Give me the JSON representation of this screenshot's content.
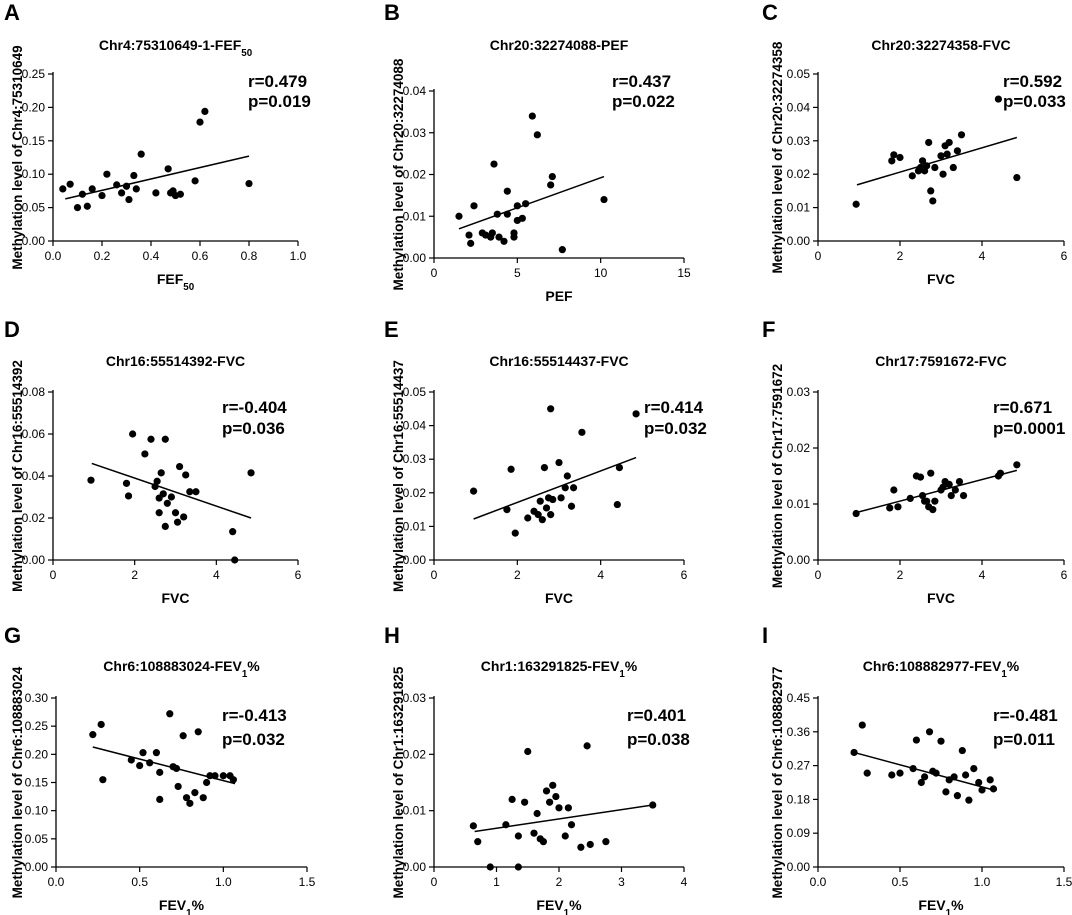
{
  "chart_data": [
    {
      "panel": "A",
      "type": "scatter",
      "title": "Chr4:75310649-1-FEF",
      "title_sub": "50",
      "xlabel": "FEF",
      "xlabel_sub": "50",
      "ylabel": "Methylation level of Chr4:75310649",
      "xlim": [
        0,
        1.0
      ],
      "ylim": [
        0,
        0.25
      ],
      "xticks": [
        "0.0",
        "0.2",
        "0.4",
        "0.6",
        "0.8",
        "1.0"
      ],
      "yticks": [
        "0.00",
        "0.05",
        "0.10",
        "0.15",
        "0.20",
        "0.25"
      ],
      "r": "r=0.479",
      "p": "p=0.019",
      "fit": [
        [
          0.05,
          0.063
        ],
        [
          0.8,
          0.127
        ]
      ],
      "points": [
        [
          0.04,
          0.078
        ],
        [
          0.07,
          0.085
        ],
        [
          0.1,
          0.05
        ],
        [
          0.12,
          0.07
        ],
        [
          0.14,
          0.052
        ],
        [
          0.16,
          0.078
        ],
        [
          0.2,
          0.068
        ],
        [
          0.22,
          0.1
        ],
        [
          0.26,
          0.084
        ],
        [
          0.28,
          0.072
        ],
        [
          0.3,
          0.082
        ],
        [
          0.31,
          0.062
        ],
        [
          0.33,
          0.098
        ],
        [
          0.34,
          0.078
        ],
        [
          0.36,
          0.13
        ],
        [
          0.42,
          0.072
        ],
        [
          0.47,
          0.108
        ],
        [
          0.48,
          0.072
        ],
        [
          0.49,
          0.075
        ],
        [
          0.5,
          0.068
        ],
        [
          0.52,
          0.07
        ],
        [
          0.58,
          0.09
        ],
        [
          0.6,
          0.178
        ],
        [
          0.62,
          0.194
        ],
        [
          0.8,
          0.086
        ]
      ]
    },
    {
      "panel": "B",
      "type": "scatter",
      "title": "Chr20:32274088-PEF",
      "title_sub": "",
      "xlabel": "PEF",
      "xlabel_sub": "",
      "ylabel": "Methylation level of Chr20:32274088",
      "xlim": [
        0,
        15
      ],
      "ylim": [
        0,
        0.04
      ],
      "xticks": [
        "0",
        "5",
        "10",
        "15"
      ],
      "yticks": [
        "0.00",
        "0.01",
        "0.02",
        "0.03",
        "0.04"
      ],
      "r": "r=0.437",
      "p": "p=0.022",
      "fit": [
        [
          1.5,
          0.007
        ],
        [
          10.2,
          0.0195
        ]
      ],
      "points": [
        [
          1.5,
          0.01
        ],
        [
          2.1,
          0.0055
        ],
        [
          2.2,
          0.0035
        ],
        [
          2.4,
          0.0125
        ],
        [
          2.9,
          0.006
        ],
        [
          3.1,
          0.0055
        ],
        [
          3.4,
          0.005
        ],
        [
          3.5,
          0.006
        ],
        [
          3.6,
          0.0225
        ],
        [
          3.9,
          0.005
        ],
        [
          3.8,
          0.0105
        ],
        [
          4.2,
          0.004
        ],
        [
          4.4,
          0.016
        ],
        [
          4.4,
          0.0105
        ],
        [
          4.8,
          0.006
        ],
        [
          4.8,
          0.005
        ],
        [
          5.0,
          0.0125
        ],
        [
          5.0,
          0.009
        ],
        [
          5.3,
          0.0095
        ],
        [
          5.5,
          0.013
        ],
        [
          5.9,
          0.034
        ],
        [
          6.2,
          0.0295
        ],
        [
          7.0,
          0.0175
        ],
        [
          7.1,
          0.0195
        ],
        [
          7.7,
          0.002
        ],
        [
          10.2,
          0.014
        ]
      ]
    },
    {
      "panel": "C",
      "type": "scatter",
      "title": "Chr20:32274358-FVC",
      "title_sub": "",
      "xlabel": "FVC",
      "xlabel_sub": "",
      "ylabel": "Methylation level of Chr20:32274358",
      "xlim": [
        0,
        6
      ],
      "ylim": [
        0,
        0.05
      ],
      "xticks": [
        "0",
        "2",
        "4",
        "6"
      ],
      "yticks": [
        "0.00",
        "0.01",
        "0.02",
        "0.03",
        "0.04",
        "0.05"
      ],
      "r": "r=0.592",
      "p": "p=0.033",
      "fit": [
        [
          0.95,
          0.0168
        ],
        [
          4.85,
          0.031
        ]
      ],
      "points": [
        [
          0.93,
          0.011
        ],
        [
          1.8,
          0.024
        ],
        [
          1.85,
          0.0258
        ],
        [
          2.0,
          0.025
        ],
        [
          2.3,
          0.0195
        ],
        [
          2.45,
          0.021
        ],
        [
          2.5,
          0.022
        ],
        [
          2.55,
          0.024
        ],
        [
          2.6,
          0.021
        ],
        [
          2.65,
          0.0225
        ],
        [
          2.7,
          0.0295
        ],
        [
          2.75,
          0.015
        ],
        [
          2.8,
          0.012
        ],
        [
          2.85,
          0.022
        ],
        [
          3.0,
          0.0255
        ],
        [
          3.05,
          0.02
        ],
        [
          3.1,
          0.0285
        ],
        [
          3.15,
          0.026
        ],
        [
          3.2,
          0.0295
        ],
        [
          3.3,
          0.022
        ],
        [
          3.4,
          0.027
        ],
        [
          3.5,
          0.0318
        ],
        [
          4.4,
          0.0425
        ],
        [
          4.85,
          0.019
        ]
      ]
    },
    {
      "panel": "D",
      "type": "scatter",
      "title": "Chr16:55514392-FVC",
      "title_sub": "",
      "xlabel": "FVC",
      "xlabel_sub": "",
      "ylabel": "Methylation level of Chr16:55514392",
      "xlim": [
        0,
        6
      ],
      "ylim": [
        0,
        0.08
      ],
      "xticks": [
        "0",
        "2",
        "4",
        "6"
      ],
      "yticks": [
        "0.00",
        "0.02",
        "0.04",
        "0.06",
        "0.08"
      ],
      "r": "r=-0.404",
      "p": "p=0.036",
      "fit": [
        [
          0.95,
          0.046
        ],
        [
          4.85,
          0.02
        ]
      ],
      "points": [
        [
          0.93,
          0.038
        ],
        [
          1.8,
          0.0365
        ],
        [
          1.85,
          0.0305
        ],
        [
          1.95,
          0.06
        ],
        [
          2.25,
          0.0505
        ],
        [
          2.4,
          0.0575
        ],
        [
          2.5,
          0.035
        ],
        [
          2.55,
          0.0375
        ],
        [
          2.6,
          0.0295
        ],
        [
          2.6,
          0.0225
        ],
        [
          2.65,
          0.0415
        ],
        [
          2.7,
          0.0315
        ],
        [
          2.75,
          0.0575
        ],
        [
          2.75,
          0.016
        ],
        [
          2.8,
          0.027
        ],
        [
          2.9,
          0.03
        ],
        [
          3.0,
          0.0225
        ],
        [
          3.05,
          0.018
        ],
        [
          3.1,
          0.0445
        ],
        [
          3.2,
          0.0205
        ],
        [
          3.25,
          0.0405
        ],
        [
          3.35,
          0.0325
        ],
        [
          3.5,
          0.0325
        ],
        [
          4.4,
          0.0135
        ],
        [
          4.45,
          0.0
        ],
        [
          4.85,
          0.0415
        ]
      ]
    },
    {
      "panel": "E",
      "type": "scatter",
      "title": "Chr16:55514437-FVC",
      "title_sub": "",
      "xlabel": "FVC",
      "xlabel_sub": "",
      "ylabel": "Methylation level of Chr16:55514437",
      "xlim": [
        0,
        6
      ],
      "ylim": [
        0,
        0.05
      ],
      "xticks": [
        "0",
        "2",
        "4",
        "6"
      ],
      "yticks": [
        "0.00",
        "0.01",
        "0.02",
        "0.03",
        "0.04",
        "0.05"
      ],
      "r": "r=0.414",
      "p": "p=0.032",
      "fit": [
        [
          0.95,
          0.0122
        ],
        [
          4.85,
          0.0305
        ]
      ],
      "points": [
        [
          0.95,
          0.0205
        ],
        [
          1.75,
          0.015
        ],
        [
          1.85,
          0.027
        ],
        [
          1.95,
          0.008
        ],
        [
          2.25,
          0.0125
        ],
        [
          2.4,
          0.0145
        ],
        [
          2.5,
          0.0135
        ],
        [
          2.55,
          0.0175
        ],
        [
          2.6,
          0.012
        ],
        [
          2.65,
          0.0275
        ],
        [
          2.7,
          0.0155
        ],
        [
          2.75,
          0.0185
        ],
        [
          2.8,
          0.045
        ],
        [
          2.8,
          0.0135
        ],
        [
          2.85,
          0.018
        ],
        [
          3.0,
          0.029
        ],
        [
          3.05,
          0.0185
        ],
        [
          3.15,
          0.0215
        ],
        [
          3.2,
          0.025
        ],
        [
          3.3,
          0.016
        ],
        [
          3.35,
          0.0215
        ],
        [
          3.55,
          0.038
        ],
        [
          4.4,
          0.0165
        ],
        [
          4.45,
          0.0275
        ],
        [
          4.85,
          0.0435
        ]
      ]
    },
    {
      "panel": "F",
      "type": "scatter",
      "title": "Chr17:7591672-FVC",
      "title_sub": "",
      "xlabel": "FVC",
      "xlabel_sub": "",
      "ylabel": "Methylation level of Chr17:7591672",
      "xlim": [
        0,
        6
      ],
      "ylim": [
        0,
        0.03
      ],
      "xticks": [
        "0",
        "2",
        "4",
        "6"
      ],
      "yticks": [
        "0.00",
        "0.01",
        "0.02",
        "0.03"
      ],
      "r": "r=0.671",
      "p": "p=0.0001",
      "fit": [
        [
          0.95,
          0.0085
        ],
        [
          4.85,
          0.016
        ]
      ],
      "points": [
        [
          0.93,
          0.0083
        ],
        [
          1.75,
          0.0093
        ],
        [
          1.85,
          0.0125
        ],
        [
          1.95,
          0.0095
        ],
        [
          2.25,
          0.011
        ],
        [
          2.4,
          0.015
        ],
        [
          2.5,
          0.0148
        ],
        [
          2.55,
          0.0115
        ],
        [
          2.6,
          0.0105
        ],
        [
          2.65,
          0.0105
        ],
        [
          2.7,
          0.0095
        ],
        [
          2.75,
          0.0155
        ],
        [
          2.8,
          0.009
        ],
        [
          2.85,
          0.0105
        ],
        [
          3.0,
          0.0125
        ],
        [
          3.05,
          0.013
        ],
        [
          3.1,
          0.014
        ],
        [
          3.2,
          0.0135
        ],
        [
          3.25,
          0.0115
        ],
        [
          3.35,
          0.0125
        ],
        [
          3.45,
          0.014
        ],
        [
          3.55,
          0.0115
        ],
        [
          4.4,
          0.015
        ],
        [
          4.45,
          0.0155
        ],
        [
          4.85,
          0.017
        ]
      ]
    },
    {
      "panel": "G",
      "type": "scatter",
      "title": "Chr6:108883024-FEV",
      "title_sub": "1",
      "title_suffix": "%",
      "xlabel": "FEV",
      "xlabel_sub": "1",
      "xlabel_suffix": "%",
      "ylabel": "Methylation level of Chr6:108883024",
      "xlim": [
        0,
        1.5
      ],
      "ylim": [
        0,
        0.3
      ],
      "xticks": [
        "0.0",
        "0.5",
        "1.0",
        "1.5"
      ],
      "yticks": [
        "0.00",
        "0.05",
        "0.10",
        "0.15",
        "0.20",
        "0.25",
        "0.30"
      ],
      "r": "r=-0.413",
      "p": "p=0.032",
      "fit": [
        [
          0.22,
          0.213
        ],
        [
          1.07,
          0.148
        ]
      ],
      "points": [
        [
          0.22,
          0.235
        ],
        [
          0.27,
          0.253
        ],
        [
          0.28,
          0.155
        ],
        [
          0.45,
          0.19
        ],
        [
          0.5,
          0.18
        ],
        [
          0.52,
          0.203
        ],
        [
          0.56,
          0.185
        ],
        [
          0.6,
          0.203
        ],
        [
          0.62,
          0.168
        ],
        [
          0.62,
          0.12
        ],
        [
          0.68,
          0.272
        ],
        [
          0.7,
          0.178
        ],
        [
          0.72,
          0.175
        ],
        [
          0.73,
          0.143
        ],
        [
          0.76,
          0.233
        ],
        [
          0.78,
          0.123
        ],
        [
          0.8,
          0.113
        ],
        [
          0.83,
          0.132
        ],
        [
          0.85,
          0.24
        ],
        [
          0.88,
          0.123
        ],
        [
          0.9,
          0.15
        ],
        [
          0.92,
          0.162
        ],
        [
          0.95,
          0.162
        ],
        [
          1.0,
          0.162
        ],
        [
          1.04,
          0.162
        ],
        [
          1.06,
          0.155
        ]
      ]
    },
    {
      "panel": "H",
      "type": "scatter",
      "title": "Chr1:163291825-FEV",
      "title_sub": "1",
      "title_suffix": "%",
      "xlabel": "FEV",
      "xlabel_sub": "1",
      "xlabel_suffix": "%",
      "ylabel": "Methylation level of Chr1:163291825",
      "xlim": [
        0,
        4
      ],
      "ylim": [
        0,
        0.03
      ],
      "xticks": [
        "0",
        "1",
        "2",
        "3",
        "4"
      ],
      "yticks": [
        "0.00",
        "0.01",
        "0.02",
        "0.03"
      ],
      "r": "r=0.401",
      "p": "p=0.038",
      "fit": [
        [
          0.65,
          0.0063
        ],
        [
          3.5,
          0.011
        ]
      ],
      "points": [
        [
          0.63,
          0.0073
        ],
        [
          0.7,
          0.0045
        ],
        [
          0.9,
          0.0
        ],
        [
          1.15,
          0.0075
        ],
        [
          1.25,
          0.012
        ],
        [
          1.35,
          0.0055
        ],
        [
          1.35,
          0.0
        ],
        [
          1.45,
          0.0115
        ],
        [
          1.5,
          0.0205
        ],
        [
          1.6,
          0.006
        ],
        [
          1.65,
          0.0095
        ],
        [
          1.7,
          0.005
        ],
        [
          1.75,
          0.0045
        ],
        [
          1.8,
          0.0135
        ],
        [
          1.85,
          0.0115
        ],
        [
          1.9,
          0.0145
        ],
        [
          1.95,
          0.0125
        ],
        [
          2.0,
          0.0105
        ],
        [
          2.1,
          0.0055
        ],
        [
          2.15,
          0.0105
        ],
        [
          2.2,
          0.0075
        ],
        [
          2.35,
          0.0035
        ],
        [
          2.45,
          0.0215
        ],
        [
          2.5,
          0.004
        ],
        [
          2.75,
          0.0045
        ],
        [
          3.5,
          0.011
        ]
      ]
    },
    {
      "panel": "I",
      "type": "scatter",
      "title": "Chr6:108882977-FEV",
      "title_sub": "1",
      "title_suffix": "%",
      "xlabel": "FEV",
      "xlabel_sub": "1",
      "xlabel_suffix": "%",
      "ylabel": "Methylation level of Chr6:108882977",
      "xlim": [
        0,
        1.5
      ],
      "ylim": [
        0,
        0.45
      ],
      "xticks": [
        "0.0",
        "0.5",
        "1.0",
        "1.5"
      ],
      "yticks": [
        "0.00",
        "0.09",
        "0.18",
        "0.27",
        "0.36",
        "0.45"
      ],
      "r": "r=-0.481",
      "p": "p=0.011",
      "fit": [
        [
          0.22,
          0.305
        ],
        [
          1.07,
          0.205
        ]
      ],
      "points": [
        [
          0.22,
          0.305
        ],
        [
          0.27,
          0.378
        ],
        [
          0.3,
          0.25
        ],
        [
          0.45,
          0.245
        ],
        [
          0.5,
          0.25
        ],
        [
          0.58,
          0.262
        ],
        [
          0.6,
          0.338
        ],
        [
          0.63,
          0.225
        ],
        [
          0.65,
          0.24
        ],
        [
          0.68,
          0.36
        ],
        [
          0.7,
          0.255
        ],
        [
          0.72,
          0.25
        ],
        [
          0.75,
          0.335
        ],
        [
          0.78,
          0.2
        ],
        [
          0.8,
          0.232
        ],
        [
          0.83,
          0.24
        ],
        [
          0.85,
          0.19
        ],
        [
          0.88,
          0.31
        ],
        [
          0.9,
          0.245
        ],
        [
          0.92,
          0.178
        ],
        [
          0.95,
          0.262
        ],
        [
          0.98,
          0.225
        ],
        [
          1.0,
          0.205
        ],
        [
          1.05,
          0.232
        ],
        [
          1.07,
          0.208
        ]
      ]
    }
  ]
}
